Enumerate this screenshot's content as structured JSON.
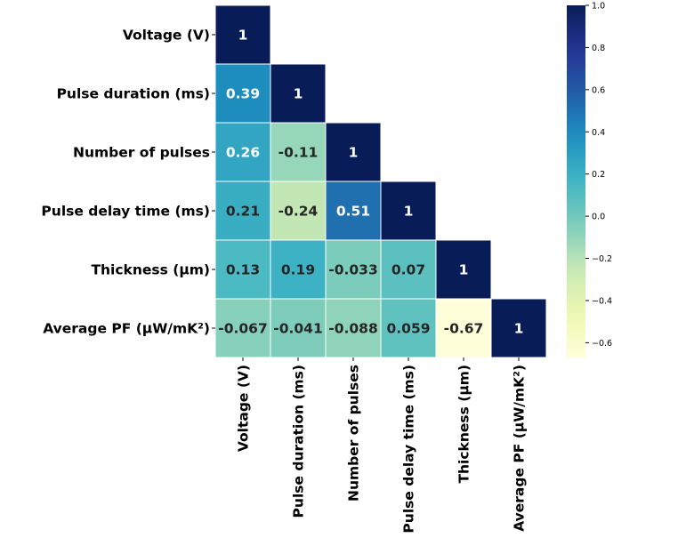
{
  "chart_data": {
    "type": "heatmap",
    "title": "",
    "variables": [
      "Voltage (V)",
      "Pulse duration (ms)",
      "Number of pulses",
      "Pulse delay time (ms)",
      "Thickness (μm)",
      "Average PF (μW/mK²)"
    ],
    "matrix": [
      [
        1,
        null,
        null,
        null,
        null,
        null
      ],
      [
        0.39,
        1,
        null,
        null,
        null,
        null
      ],
      [
        0.26,
        -0.11,
        1,
        null,
        null,
        null
      ],
      [
        0.21,
        -0.24,
        0.51,
        1,
        null,
        null
      ],
      [
        0.13,
        0.19,
        -0.033,
        0.07,
        1,
        null
      ],
      [
        -0.067,
        -0.041,
        -0.088,
        0.059,
        -0.67,
        1
      ]
    ],
    "annotations": [
      [
        "1",
        "",
        "",
        "",
        "",
        ""
      ],
      [
        "0.39",
        "1",
        "",
        "",
        "",
        ""
      ],
      [
        "0.26",
        "-0.11",
        "1",
        "",
        "",
        ""
      ],
      [
        "0.21",
        "-0.24",
        "0.51",
        "1",
        "",
        ""
      ],
      [
        "0.13",
        "0.19",
        "-0.033",
        "0.07",
        "1",
        ""
      ],
      [
        "-0.067",
        "-0.041",
        "-0.088",
        "0.059",
        "-0.67",
        "1"
      ]
    ],
    "mask": "upper-triangle",
    "colormap": "YlGnBu",
    "colorbar": {
      "range": [
        -0.67,
        1.0
      ],
      "ticks": [
        1.0,
        0.8,
        0.6,
        0.4,
        0.2,
        0.0,
        -0.2,
        -0.4,
        -0.6
      ],
      "tick_labels": [
        "1.0",
        "0.8",
        "0.6",
        "0.4",
        "0.2",
        "0.0",
        "−0.2",
        "−0.4",
        "−0.6"
      ]
    }
  }
}
